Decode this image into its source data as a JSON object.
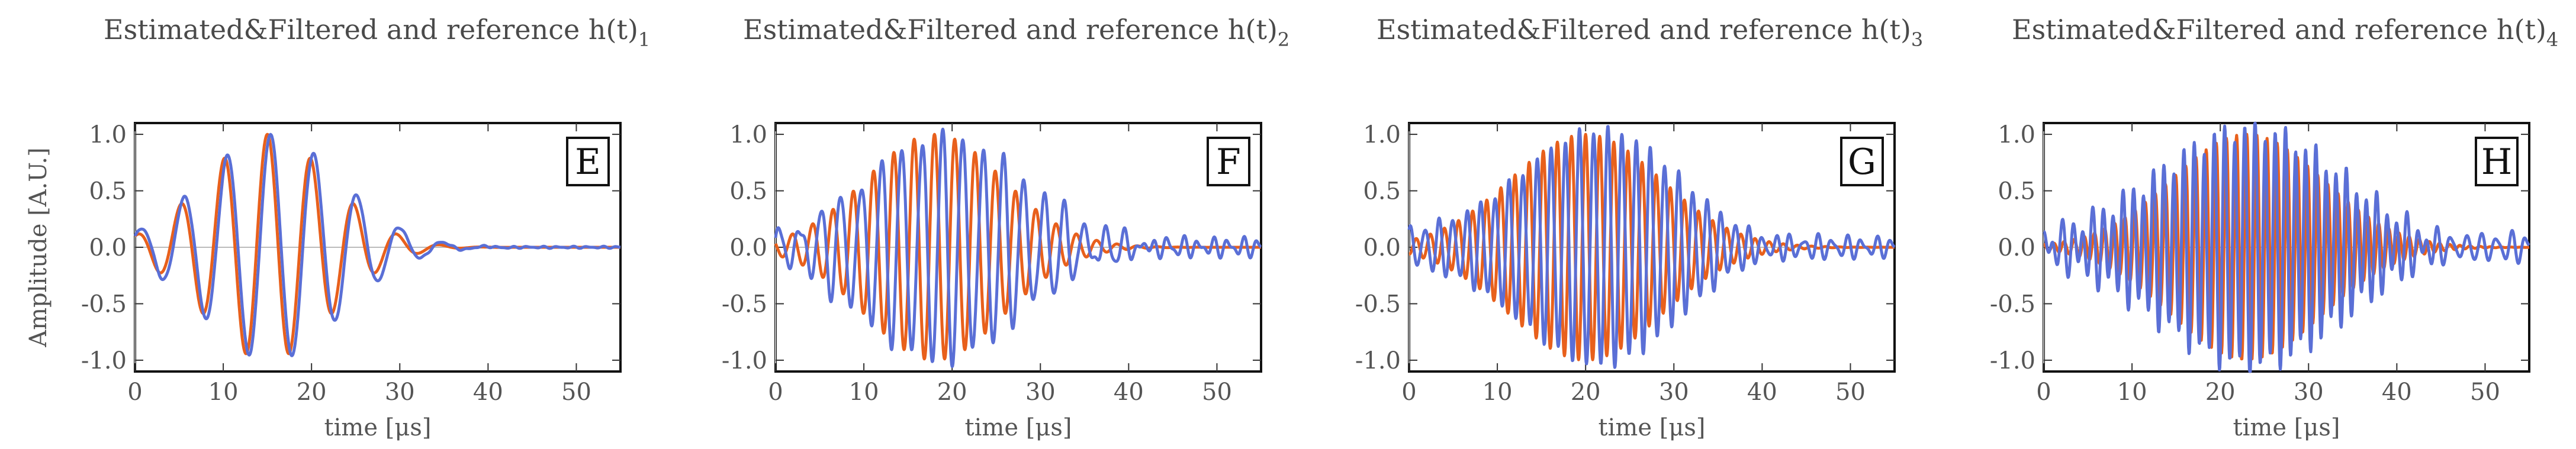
{
  "chart_data": [
    {
      "type": "line",
      "title": "Estimated&Filtered and reference h(t)",
      "title_subscript": "1",
      "panel_label": "E",
      "xlabel": "time [μs]",
      "ylabel": "Amplitude [A.U.]",
      "xlim": [
        0,
        55
      ],
      "ylim": [
        -1.1,
        1.1
      ],
      "xticks": [
        "0",
        "10",
        "20",
        "30",
        "40",
        "50"
      ],
      "yticks": [
        "1.0",
        "0.5",
        "0.0",
        "-0.5",
        "-1.0"
      ],
      "series": [
        {
          "name": "estimated & filtered",
          "color": "#e8601c",
          "shape": {
            "center": 15,
            "width": 10,
            "period": 4.9,
            "phase": 0.0,
            "noise": 0
          }
        },
        {
          "name": "reference",
          "color": "#5a6fd6",
          "shape": {
            "center": 15.5,
            "width": 11,
            "period": 4.9,
            "phase": 0.2,
            "noise": 0.01
          }
        }
      ]
    },
    {
      "type": "line",
      "title": "Estimated&Filtered and reference h(t)",
      "title_subscript": "2",
      "panel_label": "F",
      "xlabel": "time [μs]",
      "ylabel": "",
      "xlim": [
        0,
        55
      ],
      "ylim": [
        -1.1,
        1.1
      ],
      "xticks": [
        "0",
        "10",
        "20",
        "30",
        "40",
        "50"
      ],
      "yticks": [
        "1.0",
        "0.5",
        "0.0",
        "-0.5",
        "-1.0"
      ],
      "series": [
        {
          "name": "estimated & filtered",
          "color": "#e8601c",
          "shape": {
            "center": 18,
            "width": 11,
            "period": 2.3,
            "phase": 0.0,
            "noise": 0
          }
        },
        {
          "name": "reference",
          "color": "#5a6fd6",
          "shape": {
            "center": 19,
            "width": 13,
            "period": 2.3,
            "phase": 0.25,
            "noise": 0.1
          }
        }
      ]
    },
    {
      "type": "line",
      "title": "Estimated&Filtered and reference h(t)",
      "title_subscript": "3",
      "panel_label": "G",
      "xlabel": "time [μs]",
      "ylabel": "",
      "xlim": [
        0,
        55
      ],
      "ylim": [
        -1.1,
        1.1
      ],
      "xticks": [
        "0",
        "10",
        "20",
        "30",
        "40",
        "50"
      ],
      "yticks": [
        "1.0",
        "0.5",
        "0.0",
        "-0.5",
        "-1.0"
      ],
      "series": [
        {
          "name": "estimated & filtered",
          "color": "#e8601c",
          "shape": {
            "center": 20,
            "width": 12,
            "period": 1.6,
            "phase": 0.0,
            "noise": 0
          }
        },
        {
          "name": "reference",
          "color": "#5a6fd6",
          "shape": {
            "center": 21,
            "width": 14,
            "period": 1.6,
            "phase": 0.3,
            "noise": 0.1
          }
        }
      ]
    },
    {
      "type": "line",
      "title": "Estimated&Filtered and reference h(t)",
      "title_subscript": "4",
      "panel_label": "H",
      "xlabel": "time [μs]",
      "ylabel": "",
      "xlim": [
        0,
        55
      ],
      "ylim": [
        -1.1,
        1.1
      ],
      "xticks": [
        "0",
        "10",
        "20",
        "30",
        "40",
        "50"
      ],
      "yticks": [
        "1.0",
        "0.5",
        "0.0",
        "-0.5",
        "-1.0"
      ],
      "series": [
        {
          "name": "estimated & filtered",
          "color": "#e8601c",
          "shape": {
            "center": 23,
            "width": 12,
            "period": 1.15,
            "phase": 0.0,
            "noise": 0
          }
        },
        {
          "name": "reference",
          "color": "#5a6fd6",
          "shape": {
            "center": 24,
            "width": 15,
            "period": 1.15,
            "phase": 0.3,
            "noise": 0.17
          }
        }
      ]
    }
  ]
}
